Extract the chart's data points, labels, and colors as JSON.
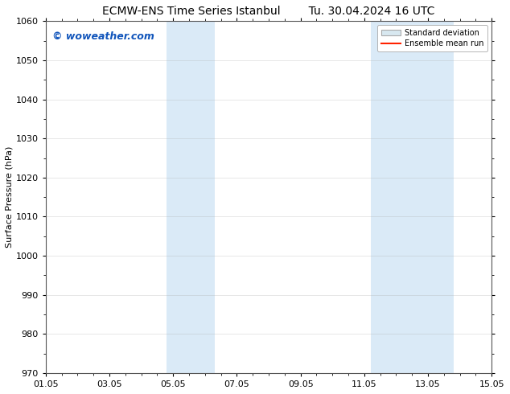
{
  "title_left": "ECMW-ENS Time Series Istanbul",
  "title_right": "Tu. 30.04.2024 16 UTC",
  "ylabel": "Surface Pressure (hPa)",
  "xlabel": "",
  "ylim": [
    970,
    1060
  ],
  "yticks": [
    970,
    980,
    990,
    1000,
    1010,
    1020,
    1030,
    1040,
    1050,
    1060
  ],
  "xlim_start": 0,
  "xlim_end": 14,
  "xtick_labels": [
    "01.05",
    "03.05",
    "05.05",
    "07.05",
    "09.05",
    "11.05",
    "13.05",
    "15.05"
  ],
  "xtick_positions": [
    0,
    2,
    4,
    6,
    8,
    10,
    12,
    14
  ],
  "shaded_bands": [
    {
      "x_start": 3.8,
      "x_end": 5.3
    },
    {
      "x_start": 10.2,
      "x_end": 12.8
    }
  ],
  "shaded_color": "#daeaf7",
  "watermark_text": "© woweather.com",
  "watermark_color": "#1155bb",
  "legend_std_dev_color": "#d8e8f0",
  "legend_mean_run_color": "#ff2200",
  "bg_color": "#ffffff",
  "grid_color": "#aaaaaa",
  "title_fontsize": 10,
  "axis_fontsize": 8,
  "tick_fontsize": 8,
  "watermark_fontsize": 9,
  "legend_fontsize": 7
}
